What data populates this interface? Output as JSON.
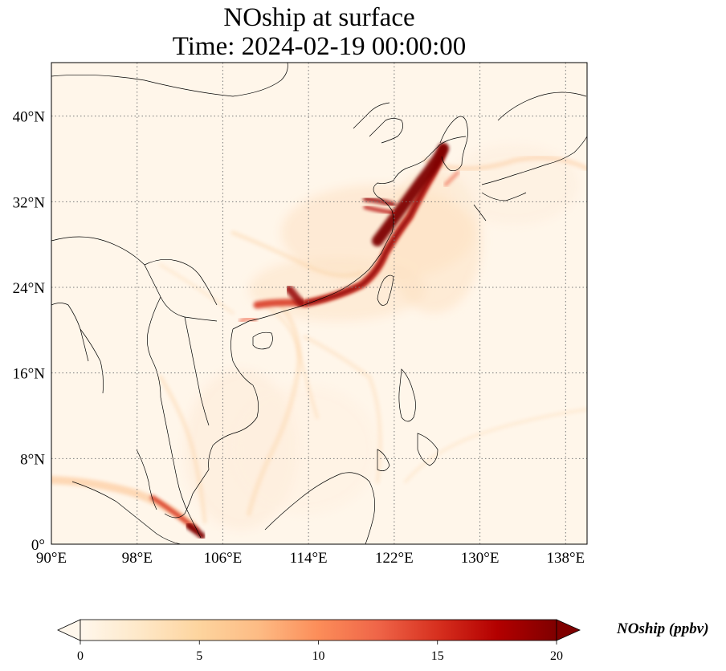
{
  "title": {
    "line1": "NOship at surface",
    "line2": "Time: 2024-02-19 00:00:00"
  },
  "axes": {
    "lon_ticks": [
      "90°E",
      "98°E",
      "106°E",
      "114°E",
      "122°E",
      "130°E",
      "138°E"
    ],
    "lat_ticks": [
      "0°",
      "8°N",
      "16°N",
      "24°N",
      "32°N",
      "40°N"
    ],
    "lon_range": [
      90,
      140
    ],
    "lat_range": [
      0,
      45
    ],
    "grid": "dotted"
  },
  "colorbar": {
    "label": "NOship (ppbv)",
    "ticks": [
      "0",
      "5",
      "10",
      "15",
      "20"
    ],
    "range": [
      0,
      20
    ],
    "colormap": "OrRd",
    "extend": "both",
    "colors": [
      "#fff7ec",
      "#fee8c8",
      "#fdd49e",
      "#fdbb84",
      "#fc8d59",
      "#ef6548",
      "#d7301f",
      "#b30000",
      "#7f0000"
    ]
  },
  "colors": {
    "background": "#fff6ea",
    "coast": "#000000",
    "grid": "#7a7a7a"
  }
}
